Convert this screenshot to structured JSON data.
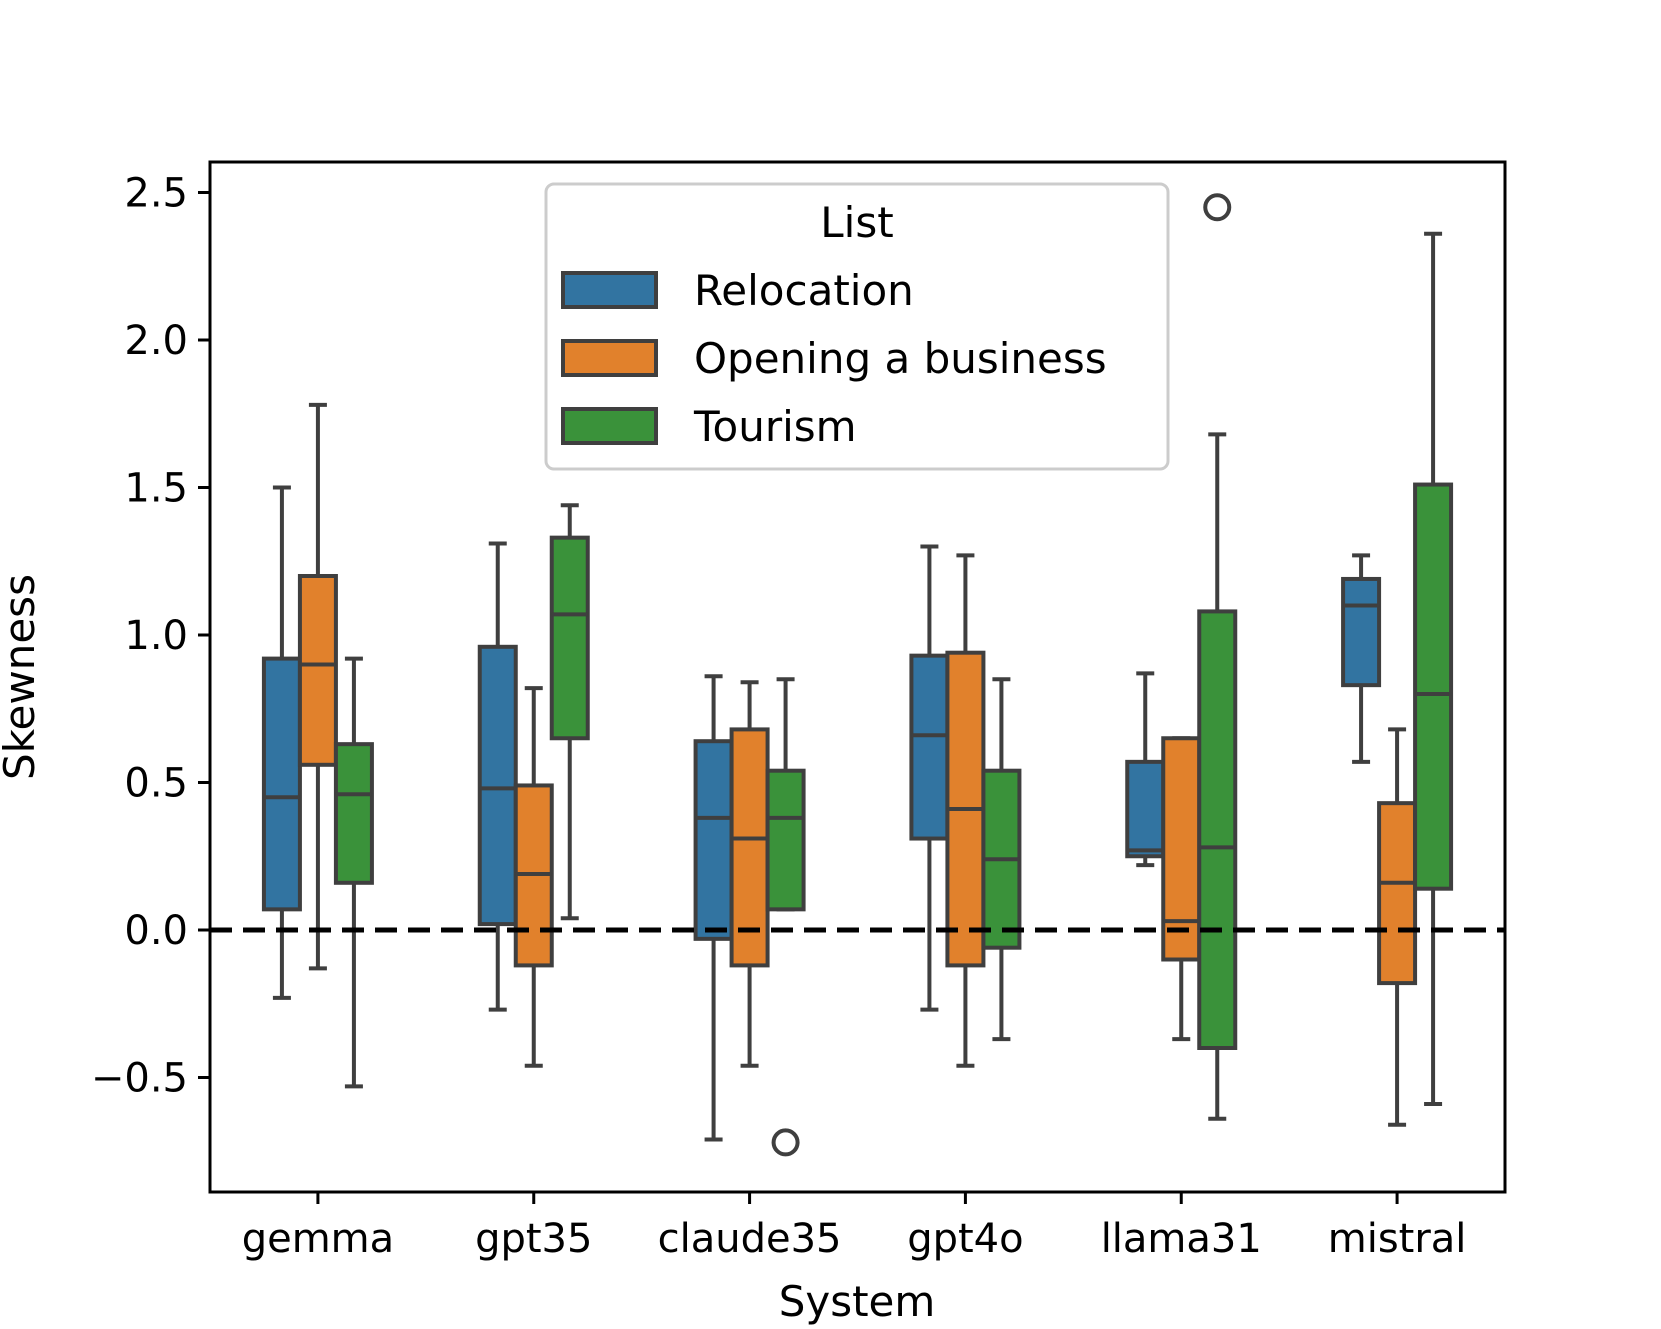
{
  "chart_data": {
    "type": "boxplot",
    "xlabel": "System",
    "ylabel": "Skewness",
    "ylim": [
      -0.88,
      2.6
    ],
    "yticks": [
      -0.5,
      0.0,
      0.5,
      1.0,
      1.5,
      2.0,
      2.5
    ],
    "ytick_labels": [
      "−0.5",
      "0.0",
      "0.5",
      "1.0",
      "1.5",
      "2.0",
      "2.5"
    ],
    "reference_line": {
      "y": 0.0,
      "style": "dashed",
      "color": "#000000"
    },
    "categories": [
      "gemma",
      "gpt35",
      "claude35",
      "gpt4o",
      "llama31",
      "mistral"
    ],
    "legend": {
      "title": "List",
      "placement": "upper-center"
    },
    "series": [
      {
        "name": "Relocation",
        "color": "#3274a1",
        "boxes": [
          {
            "whislo": -0.23,
            "q1": 0.07,
            "med": 0.45,
            "q3": 0.92,
            "whishi": 1.5,
            "fliers": []
          },
          {
            "whislo": -0.27,
            "q1": 0.02,
            "med": 0.48,
            "q3": 0.96,
            "whishi": 1.31,
            "fliers": []
          },
          {
            "whislo": -0.71,
            "q1": -0.03,
            "med": 0.38,
            "q3": 0.64,
            "whishi": 0.86,
            "fliers": []
          },
          {
            "whislo": -0.27,
            "q1": 0.31,
            "med": 0.66,
            "q3": 0.93,
            "whishi": 1.3,
            "fliers": []
          },
          {
            "whislo": 0.22,
            "q1": 0.25,
            "med": 0.27,
            "q3": 0.57,
            "whishi": 0.87,
            "fliers": []
          },
          {
            "whislo": 0.57,
            "q1": 0.83,
            "med": 1.1,
            "q3": 1.19,
            "whishi": 1.27,
            "fliers": []
          }
        ]
      },
      {
        "name": "Opening a business",
        "color": "#e1812c",
        "boxes": [
          {
            "whislo": -0.13,
            "q1": 0.56,
            "med": 0.9,
            "q3": 1.2,
            "whishi": 1.78,
            "fliers": []
          },
          {
            "whislo": -0.46,
            "q1": -0.12,
            "med": 0.19,
            "q3": 0.49,
            "whishi": 0.82,
            "fliers": []
          },
          {
            "whislo": -0.46,
            "q1": -0.12,
            "med": 0.31,
            "q3": 0.68,
            "whishi": 0.84,
            "fliers": []
          },
          {
            "whislo": -0.46,
            "q1": -0.12,
            "med": 0.41,
            "q3": 0.94,
            "whishi": 1.27,
            "fliers": []
          },
          {
            "whislo": -0.37,
            "q1": -0.1,
            "med": 0.03,
            "q3": 0.65,
            "whishi": 0.65,
            "fliers": []
          },
          {
            "whislo": -0.66,
            "q1": -0.18,
            "med": 0.16,
            "q3": 0.43,
            "whishi": 0.68,
            "fliers": []
          }
        ]
      },
      {
        "name": "Tourism",
        "color": "#3a923a",
        "boxes": [
          {
            "whislo": -0.53,
            "q1": 0.16,
            "med": 0.46,
            "q3": 0.63,
            "whishi": 0.92,
            "fliers": []
          },
          {
            "whislo": 0.04,
            "q1": 0.65,
            "med": 1.07,
            "q3": 1.33,
            "whishi": 1.44,
            "fliers": []
          },
          {
            "whislo": 0.07,
            "q1": 0.07,
            "med": 0.38,
            "q3": 0.54,
            "whishi": 0.85,
            "fliers": [
              -0.72
            ]
          },
          {
            "whislo": -0.37,
            "q1": -0.06,
            "med": 0.24,
            "q3": 0.54,
            "whishi": 0.85,
            "fliers": []
          },
          {
            "whislo": -0.64,
            "q1": -0.4,
            "med": 0.28,
            "q3": 1.08,
            "whishi": 1.68,
            "fliers": [
              2.45
            ]
          },
          {
            "whislo": -0.59,
            "q1": 0.14,
            "med": 0.8,
            "q3": 1.51,
            "whishi": 2.36,
            "fliers": []
          }
        ]
      }
    ]
  }
}
